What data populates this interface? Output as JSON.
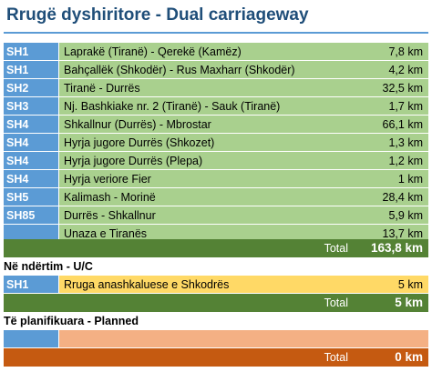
{
  "title": "Rrugë dyshiritore - Dual carriageway",
  "unit": "km",
  "dual": {
    "rows": [
      {
        "code": "SH1",
        "name": "Laprakë (Tiranë) - Qerekë (Kamëz)",
        "length": "7,8"
      },
      {
        "code": "SH1",
        "name": "Bahçallëk (Shkodër) - Rus Maxharr (Shkodër)",
        "length": "4,2"
      },
      {
        "code": "SH2",
        "name": "Tiranë - Durrës",
        "length": "32,5"
      },
      {
        "code": "SH3",
        "name": "Nj. Bashkiake nr. 2 (Tiranë) - Sauk (Tiranë)",
        "length": "1,7"
      },
      {
        "code": "SH4",
        "name": "Shkallnur (Durrës) - Mbrostar",
        "length": "66,1"
      },
      {
        "code": "SH4",
        "name": "Hyrja jugore Durrës (Shkozet)",
        "length": "1,3"
      },
      {
        "code": "SH4",
        "name": "Hyrja jugore Durrës (Plepa)",
        "length": "1,2"
      },
      {
        "code": "SH4",
        "name": "Hyrja veriore Fier",
        "length": "1"
      },
      {
        "code": "SH5",
        "name": "Kalimash - Morinë",
        "length": "28,4"
      },
      {
        "code": "SH85",
        "name": "Durrës - Shkallnur",
        "length": "5,9"
      },
      {
        "code": "",
        "name": "Unaza e Tiranës",
        "length": "13,7"
      }
    ],
    "total_label": "Total",
    "total_value": "163,8 km"
  },
  "construction": {
    "heading": "Në ndërtim - U/C",
    "rows": [
      {
        "code": "SH1",
        "name": "Rruga anashkaluese e Shkodrës",
        "length": "5"
      }
    ],
    "total_label": "Total",
    "total_value": "5 km"
  },
  "planned": {
    "heading": "Të planifikuara - Planned",
    "rows": [
      {
        "code": "",
        "name": "",
        "length": ""
      }
    ],
    "total_label": "Total",
    "total_value": "0 km"
  },
  "colors": {
    "code_bg": "#5b9bd5",
    "dual_bg": "#a9d08e",
    "dual_total": "#548235",
    "uc_bg": "#ffd966",
    "planned_bg": "#f4b084",
    "planned_total": "#c55a11"
  }
}
